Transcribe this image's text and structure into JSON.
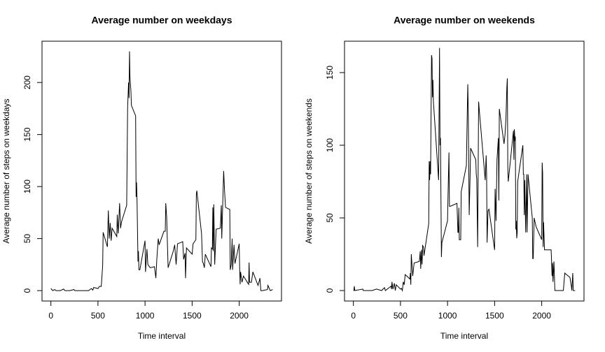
{
  "chart_data": [
    {
      "type": "line",
      "title": "Average number on weekdays",
      "xlabel": "Time interval",
      "ylabel": "Average number of steps on weekdays",
      "color": "#000000",
      "x": [
        0,
        20,
        40,
        55,
        100,
        135,
        150,
        200,
        245,
        255,
        300,
        345,
        400,
        430,
        445,
        455,
        500,
        515,
        535,
        550,
        555,
        600,
        610,
        620,
        630,
        640,
        650,
        700,
        705,
        715,
        730,
        740,
        750,
        805,
        815,
        825,
        830,
        835,
        840,
        850,
        855,
        900,
        905,
        910,
        915,
        925,
        930,
        935,
        945,
        1000,
        1005,
        1020,
        1030,
        1055,
        1100,
        1115,
        1125,
        1140,
        1150,
        1200,
        1215,
        1220,
        1230,
        1245,
        1300,
        1315,
        1330,
        1345,
        1400,
        1410,
        1425,
        1430,
        1440,
        1500,
        1510,
        1540,
        1545,
        1550,
        1600,
        1610,
        1620,
        1630,
        1640,
        1700,
        1705,
        1715,
        1720,
        1725,
        1730,
        1740,
        1755,
        1800,
        1810,
        1815,
        1835,
        1845,
        1855,
        1900,
        1905,
        1915,
        1925,
        1930,
        1945,
        1955,
        2000,
        2005,
        2010,
        2015,
        2030,
        2045,
        2100,
        2105,
        2110,
        2130,
        2145,
        2200,
        2215,
        2220,
        2230,
        2245,
        2300,
        2305,
        2330,
        2355
      ],
      "values": [
        2,
        0,
        1,
        0,
        0,
        1.5,
        0,
        0,
        1,
        0,
        0,
        0,
        0,
        2,
        0.5,
        3,
        2,
        4,
        4,
        24,
        56,
        42,
        77,
        50,
        65,
        48,
        60,
        52,
        73,
        55,
        84,
        60,
        66,
        82,
        176,
        200,
        185,
        230,
        205,
        192,
        178,
        168,
        90,
        104,
        87,
        28,
        38,
        20,
        20,
        48,
        18,
        40,
        25,
        22,
        23,
        12,
        30,
        50,
        44,
        57,
        57,
        84,
        70,
        22,
        38,
        44,
        25,
        45,
        47,
        30,
        36,
        12,
        41,
        35,
        45,
        49,
        93,
        96,
        55,
        28,
        26,
        22,
        35,
        23,
        41,
        40,
        80,
        38,
        83,
        25,
        59,
        60,
        82,
        50,
        115,
        95,
        80,
        78,
        20,
        25,
        50,
        20,
        44,
        26,
        45,
        21,
        6,
        18,
        8,
        14,
        6,
        27,
        8,
        8,
        18,
        5,
        10,
        12,
        0,
        0,
        1,
        5,
        0,
        1
      ],
      "xlim": [
        -94.2,
        2449.2
      ],
      "ylim": [
        -10,
        239.7
      ],
      "xticks": [
        0,
        500,
        1000,
        1500,
        2000
      ],
      "yticks": [
        0,
        50,
        100,
        150,
        200
      ]
    },
    {
      "type": "line",
      "title": "Average number on weekends",
      "xlabel": "Time interval",
      "ylabel": "Average number of steps on weekends",
      "color": "#000000",
      "x": [
        0,
        5,
        10,
        15,
        100,
        105,
        200,
        245,
        300,
        330,
        340,
        400,
        405,
        410,
        420,
        435,
        445,
        455,
        500,
        510,
        520,
        530,
        540,
        550,
        600,
        605,
        610,
        615,
        630,
        645,
        700,
        710,
        715,
        725,
        730,
        735,
        745,
        750,
        800,
        805,
        810,
        815,
        820,
        830,
        835,
        840,
        845,
        850,
        905,
        915,
        920,
        925,
        935,
        940,
        1000,
        1005,
        1015,
        1020,
        1030,
        1100,
        1110,
        1115,
        1120,
        1125,
        1140,
        1145,
        1200,
        1210,
        1215,
        1220,
        1230,
        1240,
        1245,
        1300,
        1305,
        1310,
        1320,
        1330,
        1340,
        1400,
        1410,
        1415,
        1420,
        1430,
        1440,
        1500,
        1505,
        1515,
        1525,
        1530,
        1540,
        1545,
        1550,
        1600,
        1610,
        1620,
        1630,
        1635,
        1640,
        1645,
        1700,
        1705,
        1710,
        1715,
        1720,
        1725,
        1730,
        1735,
        1740,
        1745,
        1800,
        1805,
        1810,
        1815,
        1820,
        1830,
        1840,
        1845,
        1855,
        1900,
        1905,
        1910,
        1920,
        1940,
        2000,
        2005,
        2010,
        2015,
        2020,
        2030,
        2100,
        2105,
        2110,
        2115,
        2120,
        2130,
        2140,
        2145,
        2200,
        2210,
        2230,
        2245,
        2300,
        2315,
        2320,
        2330,
        2335,
        2355
      ],
      "values": [
        0,
        0,
        3,
        0,
        1,
        0,
        0,
        1,
        0,
        2,
        0,
        3,
        1,
        6,
        1,
        5,
        0,
        4,
        1,
        1.5,
        0,
        6,
        4,
        11,
        8,
        12,
        4,
        25,
        10,
        19,
        20,
        27,
        15,
        28,
        18,
        31,
        30,
        24,
        46,
        89,
        76,
        89,
        80,
        162,
        160,
        133,
        145,
        130,
        76,
        167,
        100,
        105,
        23,
        33,
        48,
        65,
        95,
        58,
        58,
        60,
        40,
        40,
        57,
        35,
        35,
        68,
        86,
        124,
        142,
        124,
        52,
        80,
        98,
        90,
        80,
        77,
        30,
        130,
        122,
        76,
        93,
        80,
        33,
        55,
        56,
        28,
        70,
        48,
        90,
        95,
        105,
        62,
        125,
        101,
        107,
        118,
        140,
        146,
        85,
        75,
        110,
        90,
        111,
        103,
        106,
        42,
        48,
        36,
        40,
        75,
        100,
        80,
        80,
        52,
        76,
        40,
        80,
        40,
        80,
        50,
        22,
        22,
        50,
        44,
        35,
        88,
        81,
        30,
        47,
        28,
        28,
        20,
        10,
        19,
        6,
        20,
        0,
        0,
        0,
        0,
        0,
        12,
        9,
        3,
        0,
        12,
        0,
        0
      ],
      "xlim": [
        -94.2,
        2449.2
      ],
      "ylim": [
        -7.2,
        171.6
      ],
      "xticks": [
        0,
        500,
        1000,
        1500,
        2000
      ],
      "yticks": [
        0,
        50,
        100,
        150
      ]
    }
  ]
}
